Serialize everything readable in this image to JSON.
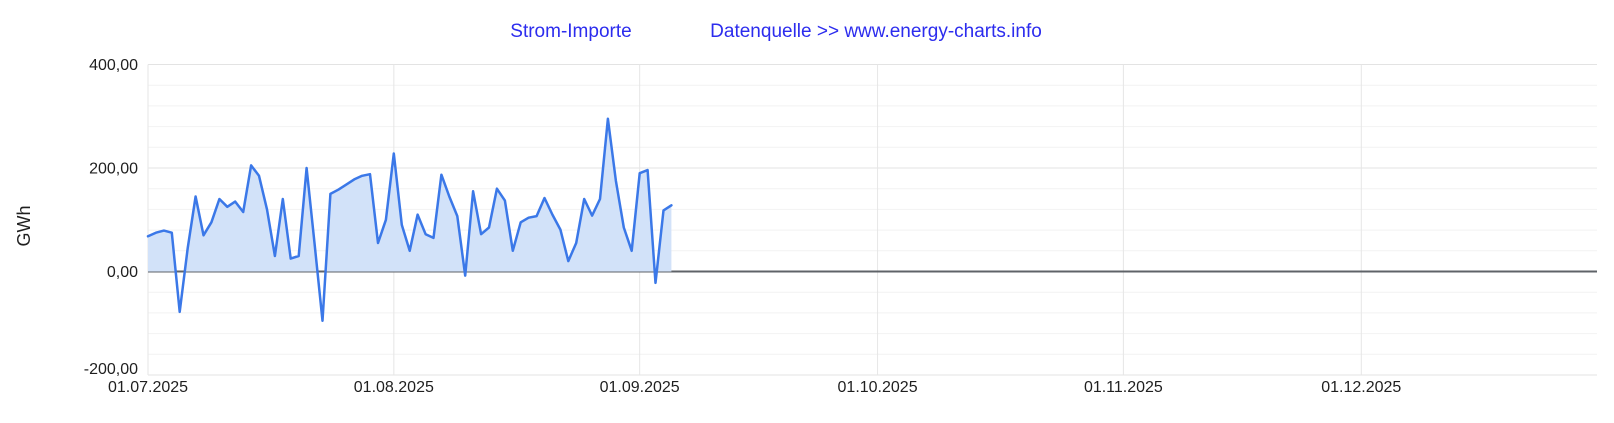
{
  "header": {
    "title": "Strom-Importe",
    "source": "Datenquelle >> www.energy-charts.info"
  },
  "colors": {
    "title": "#2c2cee",
    "axis_text": "#1f1f1f",
    "line": "#3b78e8",
    "fill": "#d2e2f9",
    "zero_line": "#5f6368",
    "grid_major": "#e3e3e3",
    "grid_minor": "#f2f2f2",
    "grid_month": "#e6e6e6",
    "background": "#ffffff"
  },
  "chart_data": {
    "type": "area",
    "title": "Strom-Importe",
    "subtitle": "Datenquelle >> www.energy-charts.info",
    "xlabel": "",
    "ylabel": "GWh",
    "ylim": [
      -200,
      400
    ],
    "grid": true,
    "legend_position": "none",
    "y_major_ticks": [
      {
        "value": 400,
        "label": "400,00"
      },
      {
        "value": 200,
        "label": "200,00"
      },
      {
        "value": 0,
        "label": "0,00"
      },
      {
        "value": -200,
        "label": "-200,00"
      }
    ],
    "y_minor_step": 40,
    "x_ticks": [
      {
        "label": "01.07.2025",
        "day": 0
      },
      {
        "label": "01.08.2025",
        "day": 31
      },
      {
        "label": "01.09.2025",
        "day": 62
      },
      {
        "label": "01.10.2025",
        "day": 92
      },
      {
        "label": "01.11.2025",
        "day": 123
      },
      {
        "label": "01.12.2025",
        "day": 153
      }
    ],
    "x_axis_total_days": 183,
    "dates": [
      "01.07.2025",
      "02.07.2025",
      "03.07.2025",
      "04.07.2025",
      "05.07.2025",
      "06.07.2025",
      "07.07.2025",
      "08.07.2025",
      "09.07.2025",
      "10.07.2025",
      "11.07.2025",
      "12.07.2025",
      "13.07.2025",
      "14.07.2025",
      "15.07.2025",
      "16.07.2025",
      "17.07.2025",
      "18.07.2025",
      "19.07.2025",
      "20.07.2025",
      "21.07.2025",
      "22.07.2025",
      "23.07.2025",
      "24.07.2025",
      "25.07.2025",
      "26.07.2025",
      "27.07.2025",
      "28.07.2025",
      "29.07.2025",
      "30.07.2025",
      "31.07.2025",
      "01.08.2025",
      "02.08.2025",
      "03.08.2025",
      "04.08.2025",
      "05.08.2025",
      "06.08.2025",
      "07.08.2025",
      "08.08.2025",
      "09.08.2025",
      "10.08.2025",
      "11.08.2025",
      "12.08.2025",
      "13.08.2025",
      "14.08.2025",
      "15.08.2025",
      "16.08.2025",
      "17.08.2025",
      "18.08.2025",
      "19.08.2025",
      "20.08.2025",
      "21.08.2025",
      "22.08.2025",
      "23.08.2025",
      "24.08.2025",
      "25.08.2025",
      "26.08.2025",
      "27.08.2025",
      "28.08.2025",
      "29.08.2025",
      "30.08.2025",
      "31.08.2025",
      "01.09.2025",
      "02.09.2025",
      "03.09.2025",
      "04.09.2025",
      "05.09.2025"
    ],
    "values": [
      68,
      75,
      79,
      75,
      -78,
      45,
      145,
      70,
      95,
      140,
      125,
      135,
      115,
      205,
      185,
      120,
      30,
      140,
      25,
      30,
      200,
      55,
      -95,
      150,
      158,
      168,
      178,
      185,
      188,
      55,
      100,
      228,
      90,
      40,
      110,
      72,
      65,
      187,
      145,
      107,
      -8,
      155,
      72,
      85,
      160,
      137,
      40,
      95,
      104,
      107,
      142,
      110,
      81,
      20,
      55,
      140,
      108,
      140,
      295,
      175,
      85,
      40,
      190,
      196,
      -22,
      118,
      128
    ]
  }
}
